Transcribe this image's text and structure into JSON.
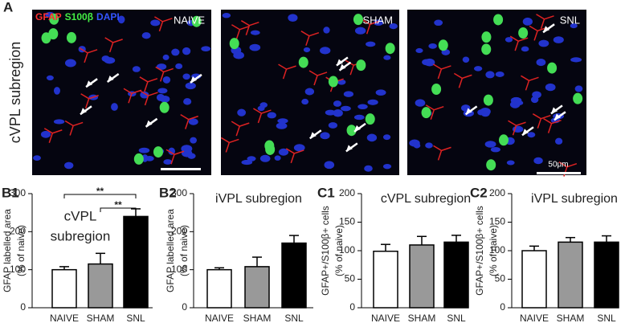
{
  "figure_label": "A",
  "row_label": "cVPL subregion",
  "stain_labels": [
    "GFAP",
    "S100β",
    "DAPI"
  ],
  "image_labels": [
    "NAIVE",
    "SHAM",
    "SNL"
  ],
  "scale_label": "50μm",
  "chart_data": [
    {
      "type": "bar",
      "panel": "B1",
      "title": [
        "cVPL",
        "subregion"
      ],
      "ylabel": [
        "GFAP labelled area",
        "(% of naive)"
      ],
      "categories": [
        "NAIVE",
        "SHAM",
        "SNL"
      ],
      "values": [
        100,
        115,
        240
      ],
      "errors": [
        8,
        28,
        20
      ],
      "colors": [
        "#ffffff",
        "#999999",
        "#000000"
      ],
      "ylim": [
        0,
        300
      ],
      "yticks": [
        0,
        100,
        200,
        300
      ],
      "significance": [
        {
          "between": [
            "NAIVE",
            "SNL"
          ],
          "label": "**"
        },
        {
          "between": [
            "SHAM",
            "SNL"
          ],
          "label": "**"
        }
      ]
    },
    {
      "type": "bar",
      "panel": "B2",
      "title": [
        "iVPL subregion"
      ],
      "ylabel": [
        "GFAP labelled area",
        "(% of naive)"
      ],
      "categories": [
        "NAIVE",
        "SHAM",
        "SNL"
      ],
      "values": [
        100,
        108,
        170
      ],
      "errors": [
        5,
        25,
        20
      ],
      "colors": [
        "#ffffff",
        "#999999",
        "#000000"
      ],
      "ylim": [
        0,
        300
      ],
      "yticks": [
        0,
        100,
        200,
        300
      ]
    },
    {
      "type": "bar",
      "panel": "C1",
      "title": [
        "cVPL subregion"
      ],
      "ylabel": [
        "GFAP+/S100β+ cells",
        "(% of naive)"
      ],
      "categories": [
        "NAIVE",
        "SHAM",
        "SNL"
      ],
      "values": [
        99,
        110,
        115
      ],
      "errors": [
        12,
        15,
        12
      ],
      "colors": [
        "#ffffff",
        "#999999",
        "#000000"
      ],
      "ylim": [
        0,
        200
      ],
      "yticks": [
        0,
        50,
        100,
        150,
        200
      ]
    },
    {
      "type": "bar",
      "panel": "C2",
      "title": [
        "iVPL subregion"
      ],
      "ylabel": [
        "GFAP+/S100β+ cells",
        "(% of naive)"
      ],
      "categories": [
        "NAIVE",
        "SHAM",
        "SNL"
      ],
      "values": [
        100,
        115,
        115
      ],
      "errors": [
        8,
        8,
        11
      ],
      "colors": [
        "#ffffff",
        "#999999",
        "#000000"
      ],
      "ylim": [
        0,
        200
      ],
      "yticks": [
        0,
        50,
        100,
        150,
        200
      ]
    }
  ]
}
